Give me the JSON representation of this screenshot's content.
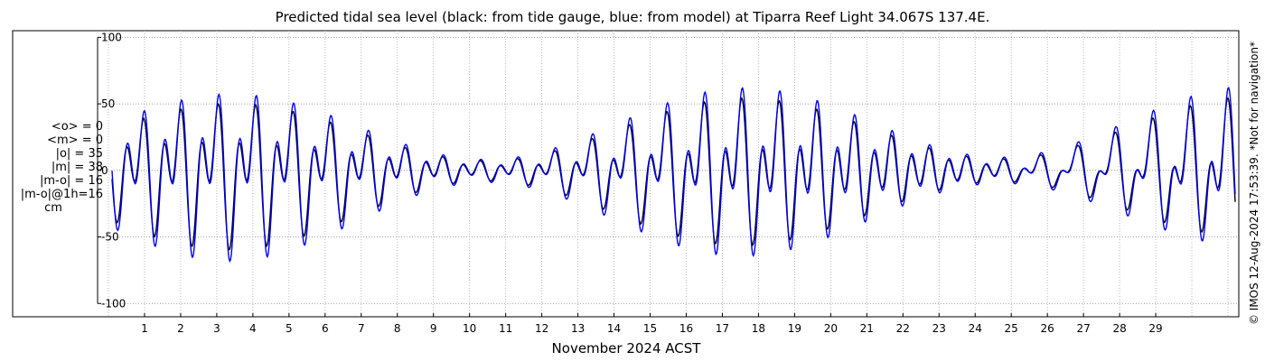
{
  "chart_data": {
    "type": "line",
    "title": "Predicted tidal sea level (black: from tide gauge, blue: from model) at Tiparra Reef Light 34.067S 137.4E.",
    "xlabel": "November 2024 ACST",
    "ylabel": "",
    "x_unit": "day of November 2024",
    "xlim": [
      -0.3,
      31.3
    ],
    "ylim": [
      -110,
      105
    ],
    "yticks": [
      -100,
      -50,
      0,
      50,
      100
    ],
    "ytick_labels": [
      "-100",
      "-50",
      "0",
      "50",
      "100"
    ],
    "xticks": [
      1,
      2,
      3,
      4,
      5,
      6,
      7,
      8,
      9,
      10,
      11,
      12,
      13,
      14,
      15,
      16,
      17,
      18,
      19,
      20,
      21,
      22,
      23,
      24,
      25,
      26,
      27,
      28,
      29
    ],
    "xtick_labels": [
      "1",
      "2",
      "3",
      "4",
      "5",
      "6",
      "7",
      "8",
      "9",
      "10",
      "11",
      "12",
      "13",
      "14",
      "15",
      "16",
      "17",
      "18",
      "19",
      "20",
      "21",
      "22",
      "23",
      "24",
      "25",
      "26",
      "27",
      "28",
      "29"
    ],
    "grid": true,
    "legend": "none",
    "series": [
      {
        "color": "#000000",
        "diurnal_amplitude": 30,
        "semidiurnal_amplitude": 33,
        "lag_hours": 0
      },
      {
        "color": "#0000ff",
        "diurnal_amplitude": 34,
        "semidiurnal_amplitude": 38,
        "lag_hours": 0.4
      }
    ]
  },
  "stats": {
    "lines": [
      "<o> = 0",
      "<m> = 0",
      "|o| = 35",
      "|m| = 38",
      "|m-o| = 16",
      "|m-o|@1h=16"
    ],
    "unit": "cm"
  },
  "watermark": "© IMOS 12-Aug-2024 17:53:39. *Not for navigation*"
}
